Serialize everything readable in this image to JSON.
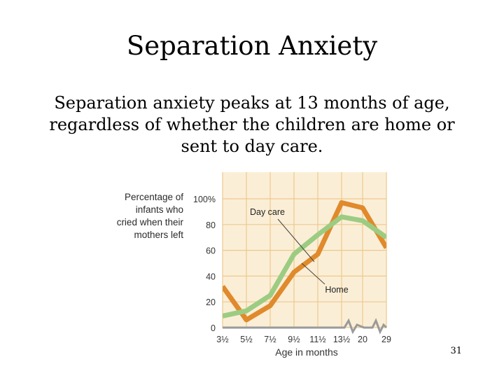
{
  "slide": {
    "title": "Separation Anxiety",
    "body": "Separation anxiety peaks at 13 months of age, regardless of whether the children are home or sent to day care.",
    "page_number": "31"
  },
  "chart_data": {
    "type": "line",
    "ylabel_lines": [
      "Percentage of",
      "infants who",
      "cried when their",
      "mothers left"
    ],
    "xlabel": "Age in months",
    "categories": [
      "3½",
      "5½",
      "7½",
      "9½",
      "11½",
      "13½",
      "20",
      "29"
    ],
    "y_ticks": [
      "0",
      "20",
      "40",
      "60",
      "80",
      "100%"
    ],
    "ylim": [
      0,
      100
    ],
    "grid": true,
    "series": [
      {
        "name": "Day care",
        "color": "#9ccc82",
        "values": [
          9,
          13,
          25,
          57,
          72,
          86,
          83,
          70
        ]
      },
      {
        "name": "Home",
        "color": "#e08a2c",
        "values": [
          32,
          6,
          17,
          43,
          57,
          97,
          93,
          62
        ]
      }
    ],
    "background_color": "#fbeed6",
    "grid_color": "#ecc98d"
  }
}
